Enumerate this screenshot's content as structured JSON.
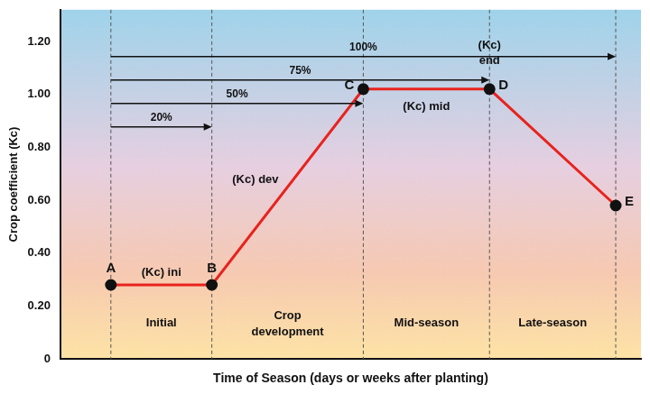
{
  "chart_data": {
    "type": "line",
    "x_label": "Time of Season (days or weeks after planting)",
    "y_label": "Crop coefficient (Kc)",
    "x": [
      0,
      20,
      50,
      75,
      100
    ],
    "values": [
      0.28,
      0.28,
      1.02,
      1.02,
      0.58
    ],
    "point_labels": [
      "A",
      "B",
      "C",
      "D",
      "E"
    ],
    "color": "#e8231e",
    "marker": "circle",
    "annotations": [
      [
        "(Kc) ini"
      ],
      [
        "(Kc) dev"
      ],
      [
        "(Kc) mid"
      ],
      [
        "(Kc)",
        "end"
      ]
    ],
    "arrows": [
      {
        "value": 20,
        "label": "20%"
      },
      {
        "value": 50,
        "label": "50%"
      },
      {
        "value": 75,
        "label": "75%"
      },
      {
        "value": 100,
        "label": "100%"
      }
    ],
    "stages": [
      [
        "Initial"
      ],
      [
        "Crop",
        "development"
      ],
      [
        "Mid-season"
      ],
      [
        "Late-season"
      ]
    ],
    "xlim": [
      -10,
      105
    ],
    "ylim": [
      0,
      1.32
    ],
    "yticks": [
      0,
      {
        "value": 0.2,
        "label": "0.20"
      },
      {
        "value": 0.4,
        "label": "0.40"
      },
      {
        "value": 0.6,
        "label": "0.60"
      },
      {
        "value": 0.8,
        "label": "0.80"
      },
      {
        "value": 1.0,
        "label": "1.00"
      },
      {
        "value": 1.2,
        "label": "1.20"
      }
    ],
    "grid": false,
    "tick_labels": "y"
  }
}
